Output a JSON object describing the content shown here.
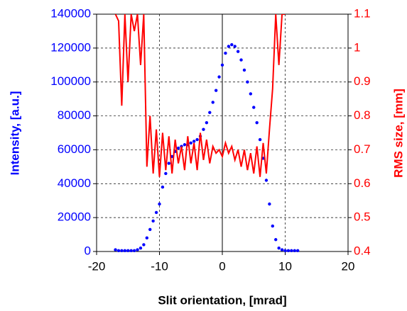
{
  "chart_data": {
    "type": "scatter+line",
    "xlabel": "Slit orientation, [mrad]",
    "ylabel": "Intensity, [a.u.]",
    "y2label": "RMS size, [mm]",
    "xlim": [
      -20,
      20
    ],
    "xticks": [
      -20,
      -10,
      0,
      10,
      20
    ],
    "ylim": [
      0,
      140000
    ],
    "yticks": [
      0,
      20000,
      40000,
      60000,
      80000,
      100000,
      120000,
      140000
    ],
    "y2lim": [
      0.4,
      1.1
    ],
    "y2ticks": [
      0.4,
      0.5,
      0.6,
      0.7,
      0.8,
      0.9,
      1,
      1.1
    ],
    "grid": true,
    "series": [
      {
        "type": "scatter",
        "color": "#0000ff",
        "x": [
          -17,
          -16.5,
          -16,
          -15.5,
          -15,
          -14.5,
          -14,
          -13.5,
          -13,
          -12.5,
          -12,
          -11.5,
          -11,
          -10.5,
          -10,
          -9.5,
          -9,
          -8.5,
          -8,
          -7.5,
          -7,
          -6.5,
          -6,
          -5.5,
          -5,
          -4.5,
          -4,
          -3.5,
          -3,
          -2.5,
          -2,
          -1.5,
          -1,
          -0.5,
          0,
          0.5,
          1,
          1.5,
          2,
          2.5,
          3,
          3.5,
          4,
          4.5,
          5,
          5.5,
          6,
          6.5,
          7,
          7.5,
          8,
          8.5,
          9,
          9.5,
          10,
          10.5,
          11,
          11.5,
          12
        ],
        "values": [
          1000,
          500,
          500,
          500,
          500,
          500,
          500,
          1000,
          2000,
          4000,
          8000,
          13000,
          18000,
          23000,
          28000,
          38000,
          46000,
          52000,
          56000,
          59000,
          61000,
          62000,
          63000,
          63000,
          64000,
          65000,
          66000,
          68000,
          72000,
          76000,
          82000,
          88000,
          95000,
          103000,
          110000,
          117000,
          121000,
          122000,
          121000,
          118000,
          113000,
          107000,
          100000,
          93000,
          85000,
          76000,
          66000,
          55000,
          42000,
          28000,
          15000,
          7000,
          2000,
          1000,
          500,
          500,
          500,
          500,
          500
        ]
      },
      {
        "type": "line",
        "color": "#ff0000",
        "axis": "y2",
        "x": [
          -17,
          -16.5,
          -16,
          -15.5,
          -15,
          -14.5,
          -14,
          -13.5,
          -13,
          -12.5,
          -12,
          -11.5,
          -11,
          -10.5,
          -10,
          -9.5,
          -9,
          -8.5,
          -8,
          -7.5,
          -7,
          -6.5,
          -6,
          -5.5,
          -5,
          -4.5,
          -4,
          -3.5,
          -3,
          -2.5,
          -2,
          -1.5,
          -1,
          -0.5,
          0,
          0.5,
          1,
          1.5,
          2,
          2.5,
          3,
          3.5,
          4,
          4.5,
          5,
          5.5,
          6,
          6.5,
          7,
          7.5,
          8,
          8.5,
          9,
          9.5,
          10
        ],
        "values": [
          1.1,
          1.08,
          0.83,
          1.1,
          0.9,
          1.1,
          1.05,
          1.1,
          0.95,
          1.1,
          0.65,
          0.8,
          0.63,
          0.76,
          0.62,
          0.75,
          0.64,
          0.74,
          0.63,
          0.73,
          0.66,
          0.71,
          0.64,
          0.74,
          0.66,
          0.72,
          0.64,
          0.75,
          0.67,
          0.73,
          0.66,
          0.71,
          0.69,
          0.7,
          0.68,
          0.72,
          0.69,
          0.71,
          0.67,
          0.7,
          0.65,
          0.7,
          0.64,
          0.69,
          0.63,
          0.71,
          0.62,
          0.72,
          0.63,
          0.76,
          0.88,
          1.1,
          0.95,
          1.1,
          1.1
        ]
      }
    ]
  }
}
